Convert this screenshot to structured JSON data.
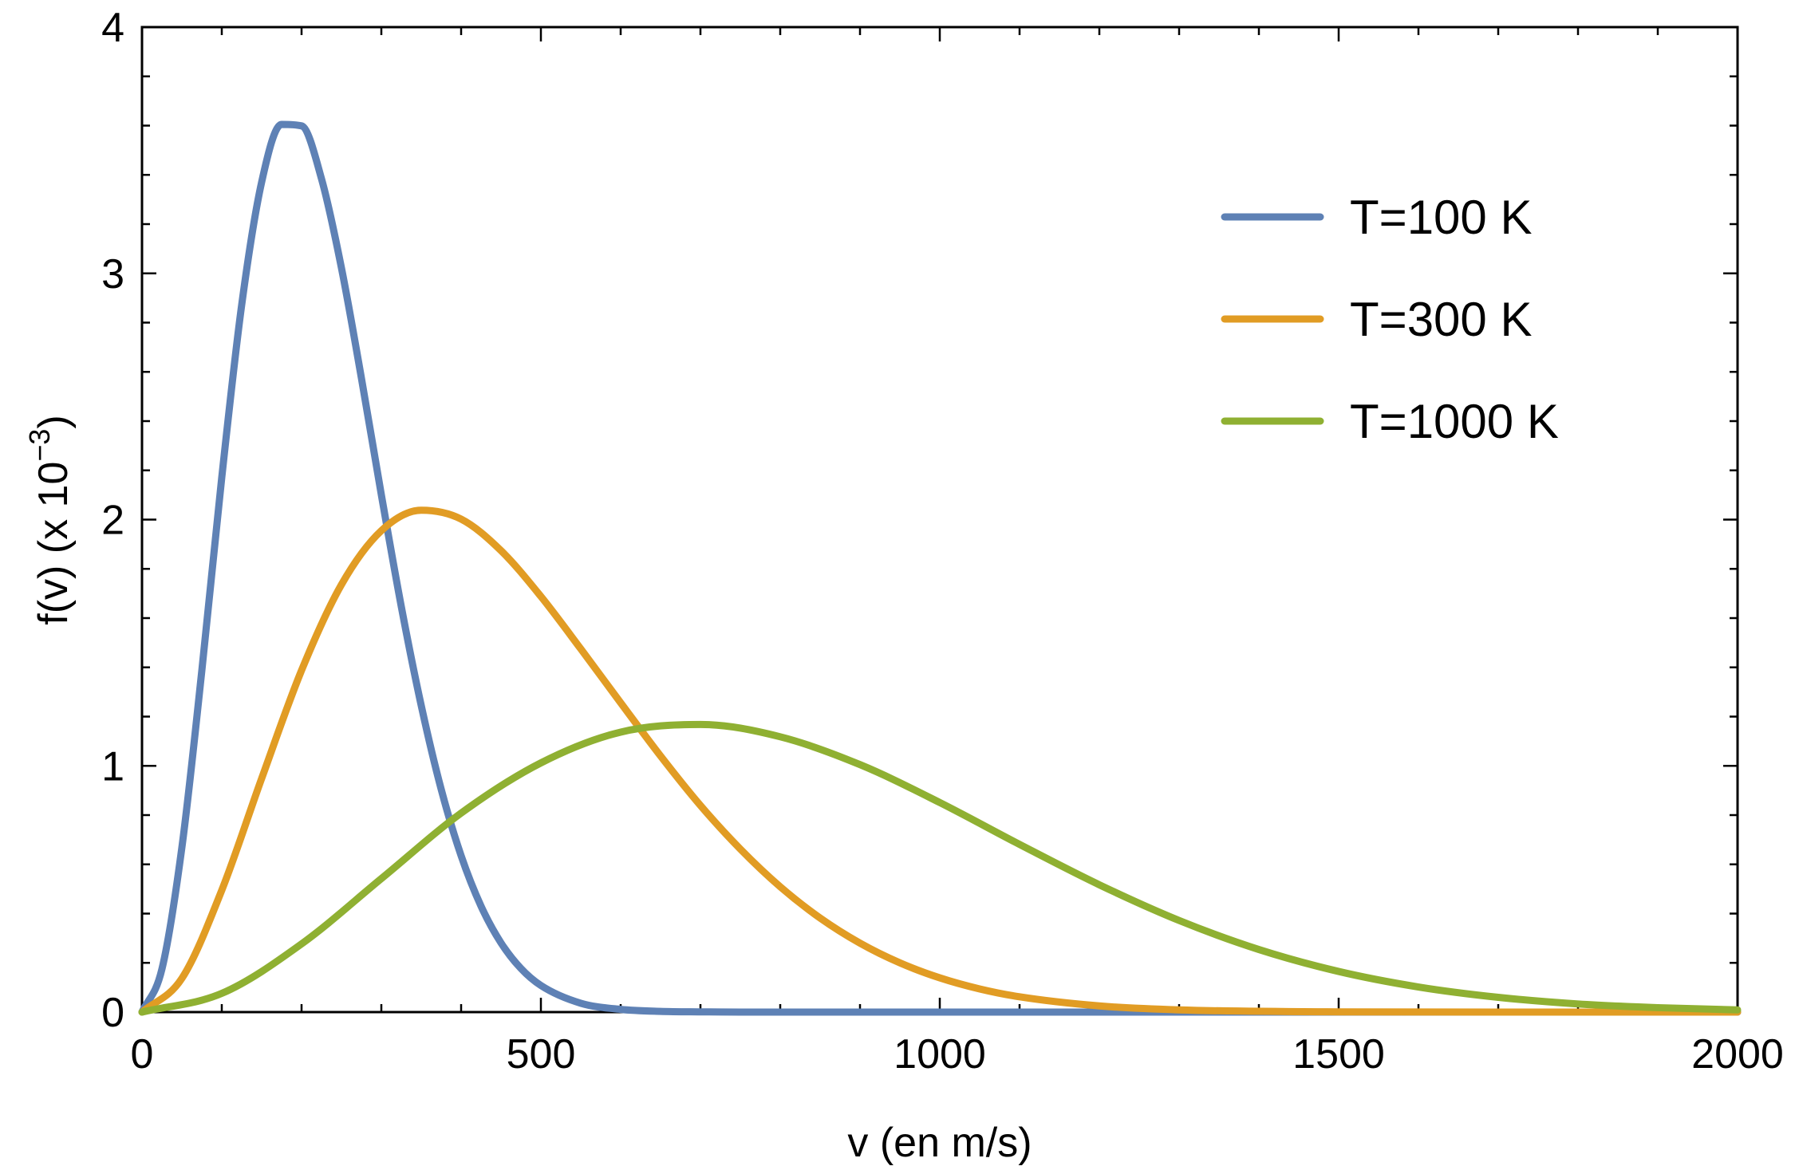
{
  "chart_data": {
    "type": "line",
    "xlabel": "v (en m/s)",
    "ylabel": "f(v) (x 10",
    "ylabel_exponent": "−3",
    "ylabel_close": ")",
    "xlim": [
      0,
      2000
    ],
    "ylim": [
      0,
      4
    ],
    "x_ticks": [
      0,
      500,
      1000,
      1500,
      2000
    ],
    "x_tick_labels": [
      "0",
      "500",
      "1000",
      "1500",
      "2000"
    ],
    "y_ticks": [
      0,
      1,
      2,
      3,
      4
    ],
    "y_tick_labels": [
      "0",
      "1",
      "2",
      "3",
      "4"
    ],
    "grid": false,
    "legend_position": "top-right",
    "series": [
      {
        "name": "T=100 K",
        "color": "#5E81B5",
        "x": [
          0,
          25,
          50,
          75,
          100,
          125,
          150,
          175,
          200,
          225,
          250,
          275,
          300,
          325,
          350,
          375,
          400,
          425,
          450,
          475,
          500,
          550,
          600,
          650,
          700,
          750,
          800,
          900,
          1000,
          1200,
          1500,
          2000
        ],
        "y": [
          0,
          0.175,
          0.669,
          1.387,
          2.172,
          2.873,
          3.371,
          3.605,
          3.599,
          3.384,
          3.022,
          2.575,
          2.101,
          1.647,
          1.245,
          0.905,
          0.635,
          0.43,
          0.281,
          0.177,
          0.108,
          0.036,
          0.011,
          0.003,
          0.001,
          0.0002,
          0,
          0,
          0,
          0,
          0,
          0
        ]
      },
      {
        "name": "T=300 K",
        "color": "#E19C24",
        "x": [
          0,
          50,
          100,
          150,
          200,
          250,
          300,
          350,
          400,
          450,
          500,
          550,
          600,
          650,
          700,
          750,
          800,
          850,
          900,
          950,
          1000,
          1050,
          1100,
          1200,
          1300,
          1500,
          1700,
          2000
        ],
        "y": [
          0,
          0.137,
          0.495,
          0.949,
          1.388,
          1.736,
          1.955,
          2.038,
          2.002,
          1.874,
          1.688,
          1.475,
          1.256,
          1.04,
          0.839,
          0.662,
          0.509,
          0.382,
          0.28,
          0.2,
          0.139,
          0.094,
          0.062,
          0.025,
          0.009,
          0.001,
          0.0001,
          0
        ]
      },
      {
        "name": "T=1000 K",
        "color": "#8FB032",
        "x": [
          0,
          100,
          200,
          300,
          400,
          500,
          600,
          700,
          800,
          900,
          1000,
          1100,
          1200,
          1300,
          1400,
          1500,
          1600,
          1700,
          1800,
          1900,
          2000
        ],
        "y": [
          0,
          0.076,
          0.277,
          0.542,
          0.808,
          1.012,
          1.137,
          1.168,
          1.118,
          1.005,
          0.851,
          0.681,
          0.517,
          0.372,
          0.254,
          0.165,
          0.102,
          0.06,
          0.033,
          0.018,
          0.009
        ]
      }
    ]
  }
}
